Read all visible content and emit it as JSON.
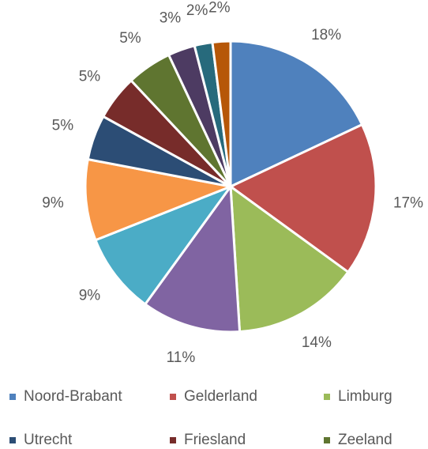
{
  "chart_data": {
    "type": "pie",
    "categories": [
      "Noord-Brabant",
      "Gelderland",
      "Limburg",
      null,
      null,
      null,
      "Utrecht",
      "Friesland",
      "Zeeland",
      null,
      null,
      null
    ],
    "values": [
      18,
      17,
      14,
      11,
      9,
      9,
      5,
      5,
      5,
      3,
      2,
      2
    ],
    "value_labels": [
      "18%",
      "17%",
      "14%",
      "11%",
      "9%",
      "9%",
      "5%",
      "5%",
      "5%",
      "3%",
      "2%",
      "2%"
    ],
    "colors": [
      "#4f81bd",
      "#c0504d",
      "#9bbb59",
      "#8064a2",
      "#4bacc6",
      "#f79646",
      "#2c4d75",
      "#772c2a",
      "#5f7530",
      "#4d3b62",
      "#276a7c",
      "#b65708"
    ],
    "legend": "bottom"
  }
}
